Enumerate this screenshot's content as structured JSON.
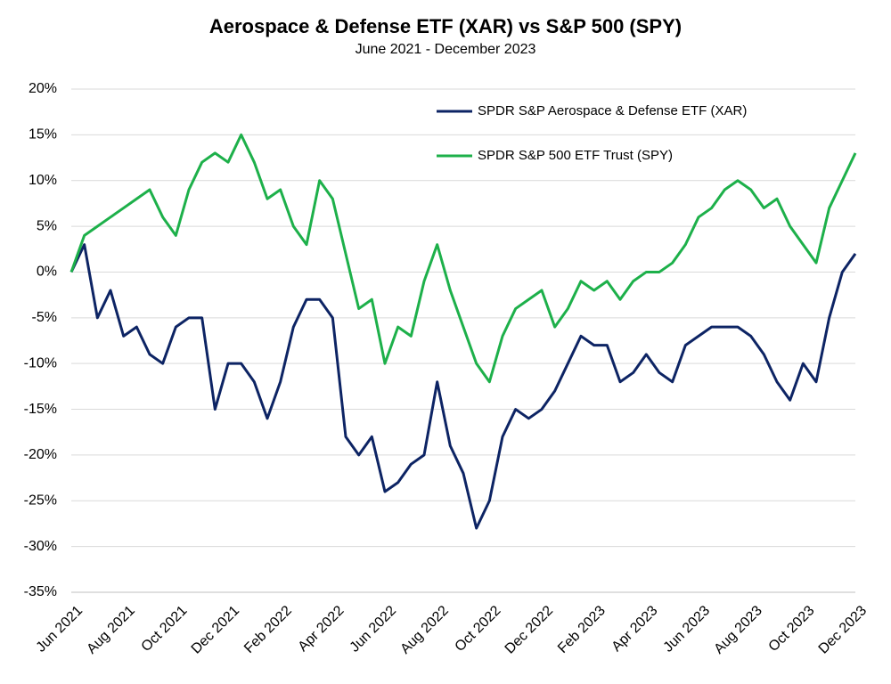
{
  "chart_data": {
    "type": "line",
    "title": "Aerospace & Defense ETF (XAR) vs S&P 500 (SPY)",
    "subtitle": "June 2021 - December 2023",
    "categories": [
      "Jun 2021",
      null,
      null,
      null,
      "Aug 2021",
      null,
      null,
      null,
      "Oct 2021",
      null,
      null,
      null,
      "Dec 2021",
      null,
      null,
      null,
      "Feb 2022",
      null,
      null,
      null,
      "Apr 2022",
      null,
      null,
      null,
      "Jun 2022",
      null,
      null,
      null,
      "Aug 2022",
      null,
      null,
      null,
      "Oct 2022",
      null,
      null,
      null,
      "Dec 2022",
      null,
      null,
      null,
      "Feb 2023",
      null,
      null,
      null,
      "Apr 2023",
      null,
      null,
      null,
      "Jun 2023",
      null,
      null,
      null,
      "Aug 2023",
      null,
      null,
      null,
      "Oct 2023",
      null,
      null,
      null,
      "Dec 2023"
    ],
    "series": [
      {
        "name": "SPDR S&P Aerospace & Defense ETF (XAR)",
        "color": "#0d2464",
        "values": [
          0,
          3,
          -5,
          -2,
          -7,
          -6,
          -9,
          -10,
          -6,
          -5,
          -5,
          -15,
          -10,
          -10,
          -12,
          -16,
          -12,
          -6,
          -3,
          -3,
          -5,
          -18,
          -20,
          -18,
          -24,
          -23,
          -21,
          -20,
          -12,
          -19,
          -22,
          -28,
          -25,
          -18,
          -15,
          -16,
          -15,
          -13,
          -10,
          -7,
          -8,
          -8,
          -12,
          -11,
          -9,
          -11,
          -12,
          -8,
          -7,
          -6,
          -6,
          -6,
          -7,
          -9,
          -12,
          -14,
          -10,
          -12,
          -5,
          0,
          2
        ]
      },
      {
        "name": "SPDR S&P 500 ETF Trust (SPY)",
        "color": "#1db04a",
        "values": [
          0,
          4,
          5,
          6,
          7,
          8,
          9,
          6,
          4,
          9,
          12,
          13,
          12,
          15,
          12,
          8,
          9,
          5,
          3,
          10,
          8,
          2,
          -4,
          -3,
          -10,
          -6,
          -7,
          -1,
          3,
          -2,
          -6,
          -10,
          -12,
          -7,
          -4,
          -3,
          -2,
          -6,
          -4,
          -1,
          -2,
          -1,
          -3,
          -1,
          0,
          0,
          1,
          3,
          6,
          7,
          9,
          10,
          9,
          7,
          8,
          5,
          3,
          1,
          7,
          10,
          13
        ]
      }
    ],
    "ylim": [
      -35,
      20
    ],
    "yticks": [
      {
        "value": -35,
        "label": "-35%"
      },
      {
        "value": -30,
        "label": "-30%"
      },
      {
        "value": -25,
        "label": "-25%"
      },
      {
        "value": -20,
        "label": "-20%"
      },
      {
        "value": -15,
        "label": "-15%"
      },
      {
        "value": -10,
        "label": "-10%"
      },
      {
        "value": -5,
        "label": "-5%"
      },
      {
        "value": 0,
        "label": "0%"
      },
      {
        "value": 5,
        "label": "5%"
      },
      {
        "value": 10,
        "label": "10%"
      },
      {
        "value": 15,
        "label": "15%"
      },
      {
        "value": 20,
        "label": "20%"
      }
    ],
    "grid": true,
    "legend": "top-right"
  }
}
